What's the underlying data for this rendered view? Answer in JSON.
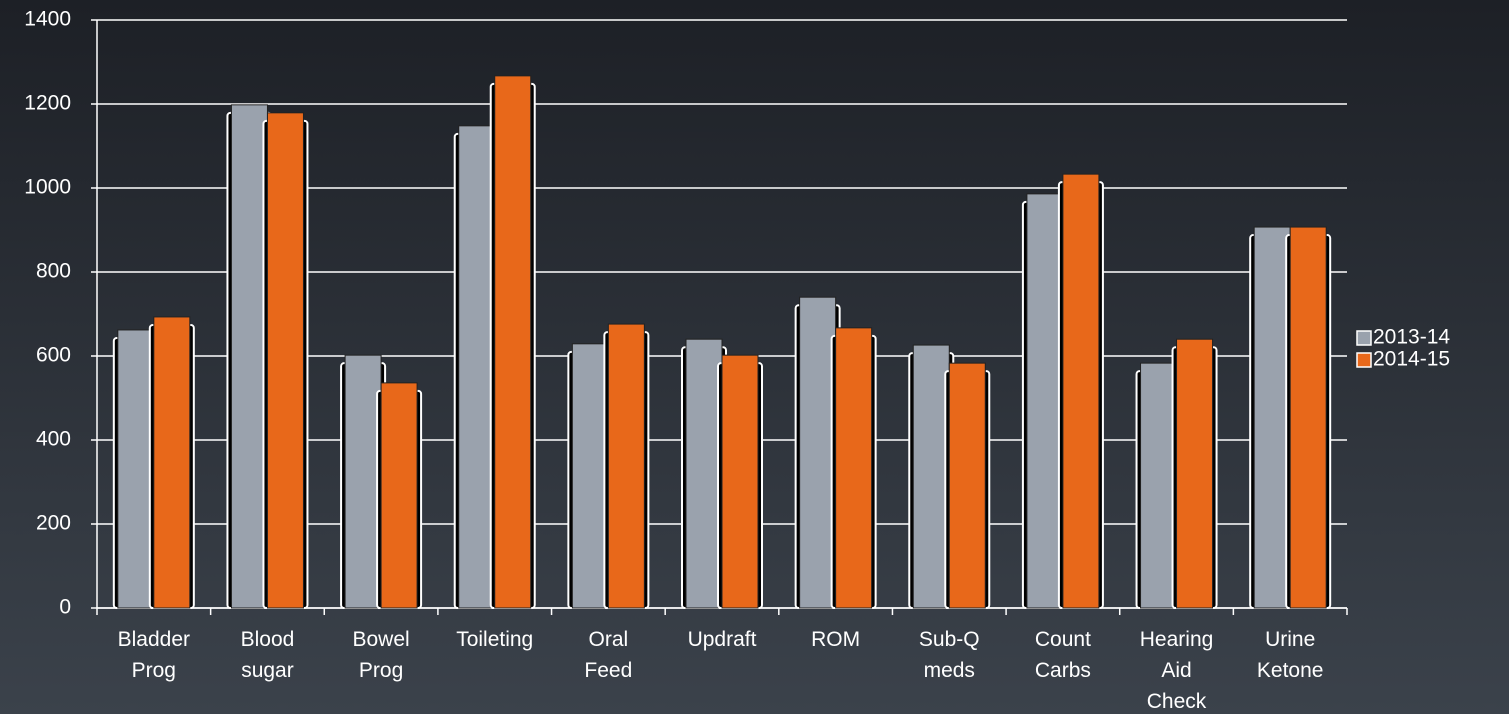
{
  "chart_data": {
    "type": "bar",
    "categories": [
      "Bladder Prog",
      "Blood sugar",
      "Bowel Prog",
      "Toileting",
      "Oral Feed",
      "Updraft",
      "ROM",
      "Sub-Q meds",
      "Count Carbs",
      "Hearing Aid Check",
      "Urine Ketone"
    ],
    "series": [
      {
        "name": "2013-14",
        "color": "#9aa2ad",
        "values": [
          662,
          1198,
          602,
          1148,
          629,
          640,
          740,
          626,
          986,
          583,
          907
        ]
      },
      {
        "name": "2014-15",
        "color": "#e8681a",
        "values": [
          693,
          1179,
          536,
          1267,
          676,
          602,
          667,
          583,
          1033,
          640,
          907
        ]
      }
    ],
    "ylim": [
      0,
      1400
    ],
    "yticks": [
      0,
      200,
      400,
      600,
      800,
      1000,
      1200,
      1400
    ],
    "grid": true,
    "legend": "right"
  }
}
